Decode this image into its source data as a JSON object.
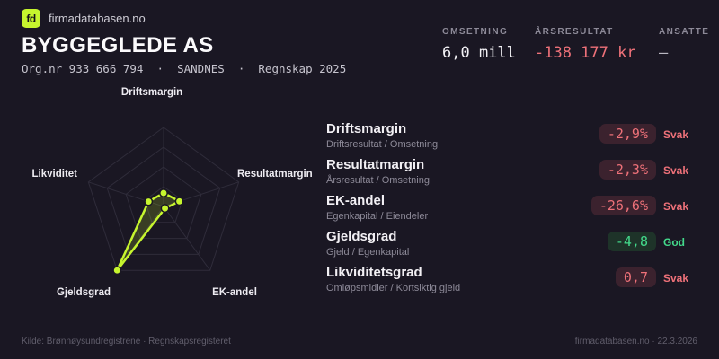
{
  "brand": {
    "logo_text": "fd",
    "name": "firmadatabasen.no"
  },
  "header": {
    "company_name": "BYGGEGLEDE AS",
    "subtitle": "Org.nr 933 666 794  ·  SANDNES  ·  Regnskap 2025"
  },
  "stats": [
    {
      "label": "OMSETNING",
      "value": "6,0 mill",
      "tone": "normal"
    },
    {
      "label": "ÅRSRESULTAT",
      "value": "-138 177 kr",
      "tone": "negative"
    },
    {
      "label": "ANSATTE",
      "value": "–",
      "tone": "muted"
    }
  ],
  "metrics": [
    {
      "name": "Driftsmargin",
      "formula": "Driftsresultat / Omsetning",
      "value": "-2,9%",
      "status": "Svak",
      "tone": "bad"
    },
    {
      "name": "Resultatmargin",
      "formula": "Årsresultat / Omsetning",
      "value": "-2,3%",
      "status": "Svak",
      "tone": "bad"
    },
    {
      "name": "EK-andel",
      "formula": "Egenkapital / Eiendeler",
      "value": "-26,6%",
      "status": "Svak",
      "tone": "bad"
    },
    {
      "name": "Gjeldsgrad",
      "formula": "Gjeld / Egenkapital",
      "value": "-4,8",
      "status": "God",
      "tone": "good"
    },
    {
      "name": "Likviditetsgrad",
      "formula": "Omløpsmidler / Kortsiktig gjeld",
      "value": "0,7",
      "status": "Svak",
      "tone": "bad"
    }
  ],
  "chart_data": {
    "type": "radar",
    "title": "",
    "categories": [
      "Driftsmargin",
      "Resultatmargin",
      "EK-andel",
      "Gjeldsgrad",
      "Likviditet"
    ],
    "values_normalized": [
      0.17,
      0.21,
      0.03,
      1.0,
      0.2
    ],
    "metric_values": [
      "-2,9%",
      "-2,3%",
      "-26,6%",
      "-4,8",
      "0,7"
    ],
    "range": [
      0,
      1
    ],
    "rings": 4,
    "grid": true,
    "legend": "none"
  },
  "footer": {
    "source": "Kilde: Brønnøysundregistrene · Regnskapsregisteret",
    "credit": "firmadatabasen.no · 22.3.2026"
  },
  "colors": {
    "background": "#1a1723",
    "accent": "#c6f52e",
    "negative": "#ee7179",
    "positive": "#43d98b",
    "grid": "#2f2c3a"
  }
}
